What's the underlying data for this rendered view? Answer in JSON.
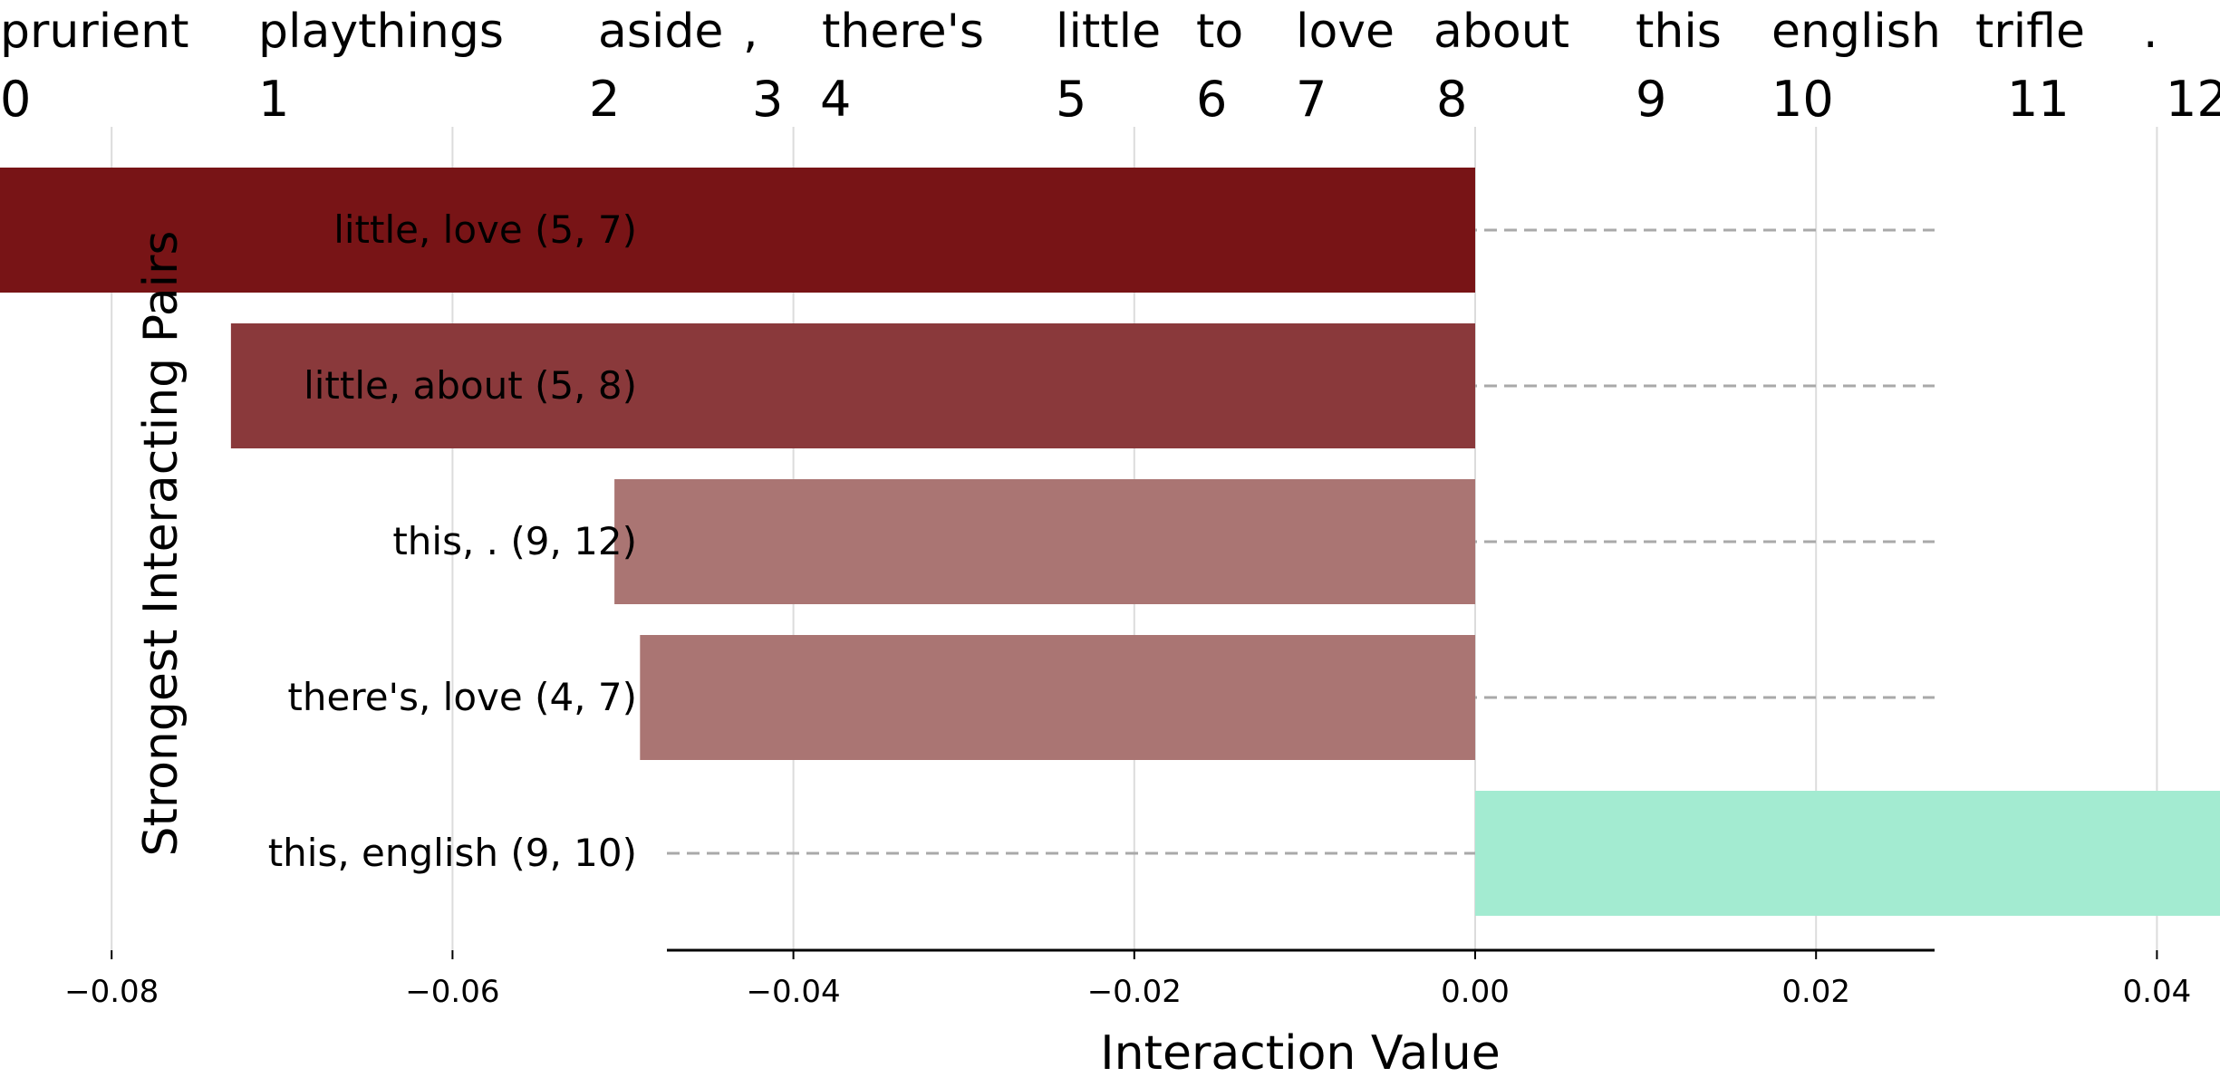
{
  "chart_data": {
    "type": "bar",
    "orientation": "horizontal",
    "sentence": {
      "tokens": [
        "prurient",
        "playthings",
        "aside",
        ",",
        "there's",
        "little",
        "to",
        "love",
        "about",
        "this",
        "english",
        "trifle",
        "."
      ],
      "indices": [
        "0",
        "1",
        "2",
        "3",
        "4",
        "5",
        "6",
        "7",
        "8",
        "9",
        "10",
        "11",
        "12"
      ]
    },
    "categories": [
      "little, love (5, 7)",
      "little, about (5, 8)",
      "this, . (9, 12)",
      "there's, love (4, 7)",
      "this, english (9, 10)"
    ],
    "values": [
      -0.088,
      -0.073,
      -0.0505,
      -0.049,
      0.047
    ],
    "colors": [
      "#781416",
      "#8a393b",
      "#aa7573",
      "#aa7573",
      "#a3ebd1"
    ],
    "xlabel": "Interaction Value",
    "ylabel": "Strongest Interacting Pairs",
    "xticks": [
      "−0.08",
      "−0.06",
      "−0.04",
      "−0.02",
      "0.00",
      "0.02",
      "0.04"
    ],
    "xtick_values": [
      -0.08,
      -0.06,
      -0.04,
      -0.02,
      0.0,
      0.02,
      0.04
    ],
    "xlim": [
      -0.095,
      0.054
    ],
    "grid": "vertical"
  }
}
